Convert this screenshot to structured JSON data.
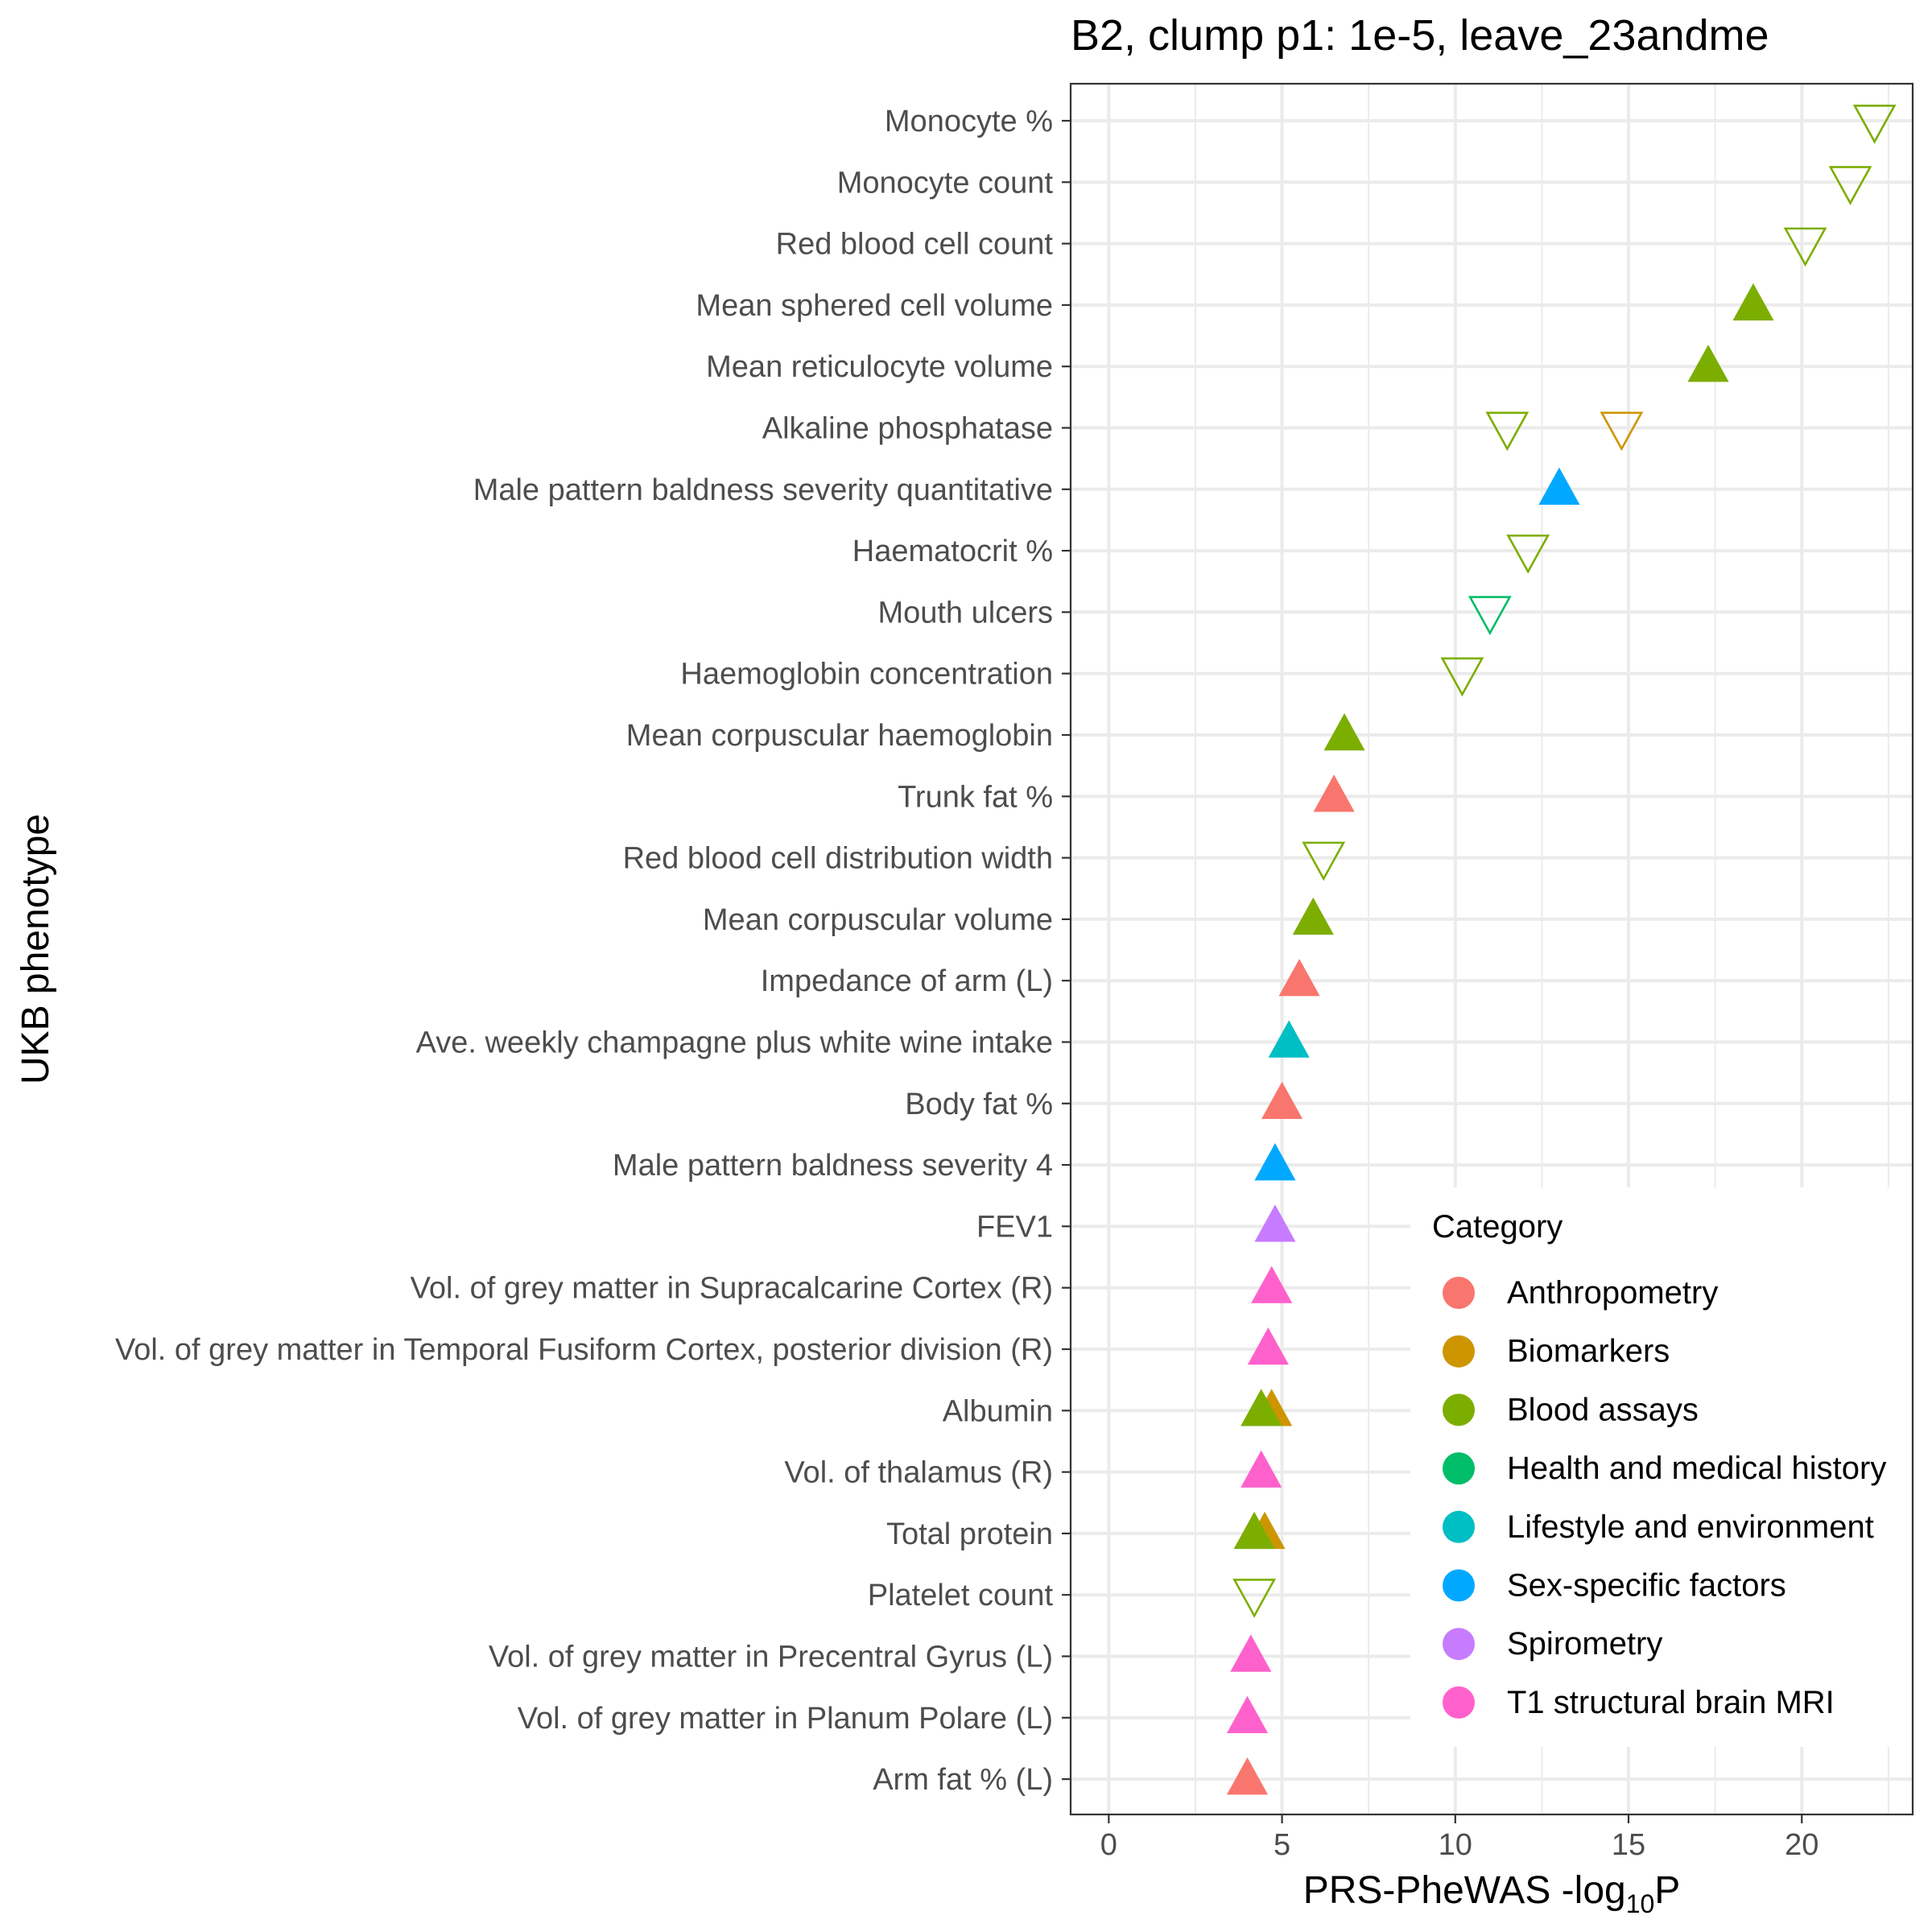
{
  "chart_data": {
    "type": "scatter",
    "title": "B2, clump p1: 1e-5, leave_23andme",
    "xlabel_main": "PRS-PheWAS -log",
    "xlabel_sub": "10",
    "xlabel_tail": "P",
    "ylabel": "UKB phenotype",
    "xlim": [
      -1.1,
      23.2
    ],
    "xticks": [
      0,
      5,
      10,
      15,
      20
    ],
    "grid": true,
    "categories": [
      "Monocyte %",
      "Monocyte count",
      "Red blood cell count",
      "Mean sphered cell volume",
      "Mean reticulocyte volume",
      "Alkaline phosphatase",
      "Male pattern baldness severity quantitative",
      "Haematocrit %",
      "Mouth ulcers",
      "Haemoglobin concentration",
      "Mean corpuscular haemoglobin",
      "Trunk fat %",
      "Red blood cell distribution width",
      "Mean corpuscular volume",
      "Impedance of arm (L)",
      "Ave. weekly champagne plus white wine intake",
      "Body fat %",
      "Male pattern baldness severity 4",
      "FEV1",
      "Vol. of grey matter in Supracalcarine Cortex (R)",
      "Vol. of grey matter in Temporal Fusiform Cortex, posterior division (R)",
      "Albumin",
      "Vol. of thalamus (R)",
      "Total protein",
      "Platelet count",
      "Vol. of grey matter in Precentral Gyrus (L)",
      "Vol. of grey matter in Planum Polare (L)",
      "Arm fat % (L)"
    ],
    "points": [
      {
        "phenotype": "Monocyte %",
        "x": 22.1,
        "category": "Blood assays",
        "direction": "down"
      },
      {
        "phenotype": "Monocyte count",
        "x": 21.4,
        "category": "Blood assays",
        "direction": "down"
      },
      {
        "phenotype": "Red blood cell count",
        "x": 20.1,
        "category": "Blood assays",
        "direction": "down"
      },
      {
        "phenotype": "Mean sphered cell volume",
        "x": 18.6,
        "category": "Blood assays",
        "direction": "up"
      },
      {
        "phenotype": "Mean reticulocyte volume",
        "x": 17.3,
        "category": "Blood assays",
        "direction": "up"
      },
      {
        "phenotype": "Alkaline phosphatase",
        "x": 14.8,
        "category": "Biomarkers",
        "direction": "down"
      },
      {
        "phenotype": "Alkaline phosphatase",
        "x": 11.5,
        "category": "Blood assays",
        "direction": "down"
      },
      {
        "phenotype": "Male pattern baldness severity quantitative",
        "x": 13.0,
        "category": "Sex-specific factors",
        "direction": "up"
      },
      {
        "phenotype": "Haematocrit %",
        "x": 12.1,
        "category": "Blood assays",
        "direction": "down"
      },
      {
        "phenotype": "Mouth ulcers",
        "x": 11.0,
        "category": "Health and medical history",
        "direction": "down"
      },
      {
        "phenotype": "Haemoglobin concentration",
        "x": 10.2,
        "category": "Blood assays",
        "direction": "down"
      },
      {
        "phenotype": "Mean corpuscular haemoglobin",
        "x": 6.8,
        "category": "Blood assays",
        "direction": "up"
      },
      {
        "phenotype": "Trunk fat %",
        "x": 6.5,
        "category": "Anthropometry",
        "direction": "up"
      },
      {
        "phenotype": "Red blood cell distribution width",
        "x": 6.2,
        "category": "Blood assays",
        "direction": "down"
      },
      {
        "phenotype": "Mean corpuscular volume",
        "x": 5.9,
        "category": "Blood assays",
        "direction": "up"
      },
      {
        "phenotype": "Impedance of arm (L)",
        "x": 5.5,
        "category": "Anthropometry",
        "direction": "up"
      },
      {
        "phenotype": "Ave. weekly champagne plus white wine intake",
        "x": 5.2,
        "category": "Lifestyle and environment",
        "direction": "up"
      },
      {
        "phenotype": "Body fat %",
        "x": 5.0,
        "category": "Anthropometry",
        "direction": "up"
      },
      {
        "phenotype": "Male pattern baldness severity 4",
        "x": 4.8,
        "category": "Sex-specific factors",
        "direction": "up"
      },
      {
        "phenotype": "FEV1",
        "x": 4.8,
        "category": "Spirometry",
        "direction": "up"
      },
      {
        "phenotype": "Vol. of grey matter in Supracalcarine Cortex (R)",
        "x": 4.7,
        "category": "T1 structural brain MRI",
        "direction": "up"
      },
      {
        "phenotype": "Vol. of grey matter in Temporal Fusiform Cortex, posterior division (R)",
        "x": 4.6,
        "category": "T1 structural brain MRI",
        "direction": "up"
      },
      {
        "phenotype": "Albumin",
        "x": 4.7,
        "category": "Biomarkers",
        "direction": "up"
      },
      {
        "phenotype": "Albumin",
        "x": 4.4,
        "category": "Blood assays",
        "direction": "up"
      },
      {
        "phenotype": "Vol. of thalamus (R)",
        "x": 4.4,
        "category": "T1 structural brain MRI",
        "direction": "up"
      },
      {
        "phenotype": "Total protein",
        "x": 4.5,
        "category": "Biomarkers",
        "direction": "up"
      },
      {
        "phenotype": "Total protein",
        "x": 4.2,
        "category": "Blood assays",
        "direction": "up"
      },
      {
        "phenotype": "Platelet count",
        "x": 4.2,
        "category": "Blood assays",
        "direction": "down"
      },
      {
        "phenotype": "Vol. of grey matter in Precentral Gyrus (L)",
        "x": 4.1,
        "category": "T1 structural brain MRI",
        "direction": "up"
      },
      {
        "phenotype": "Vol. of grey matter in Planum Polare (L)",
        "x": 4.0,
        "category": "T1 structural brain MRI",
        "direction": "up"
      },
      {
        "phenotype": "Arm fat % (L)",
        "x": 4.0,
        "category": "Anthropometry",
        "direction": "up"
      }
    ],
    "legend": {
      "title": "Category",
      "position": "bottom-right",
      "entries": [
        {
          "name": "Anthropometry",
          "color": "#F8766D"
        },
        {
          "name": "Biomarkers",
          "color": "#CD9600"
        },
        {
          "name": "Blood assays",
          "color": "#7CAE00"
        },
        {
          "name": "Health and medical history",
          "color": "#00BE67"
        },
        {
          "name": "Lifestyle and environment",
          "color": "#00BFC4"
        },
        {
          "name": "Sex-specific factors",
          "color": "#00A9FF"
        },
        {
          "name": "Spirometry",
          "color": "#C77CFF"
        },
        {
          "name": "T1 structural brain MRI",
          "color": "#FF61CC"
        }
      ]
    }
  }
}
